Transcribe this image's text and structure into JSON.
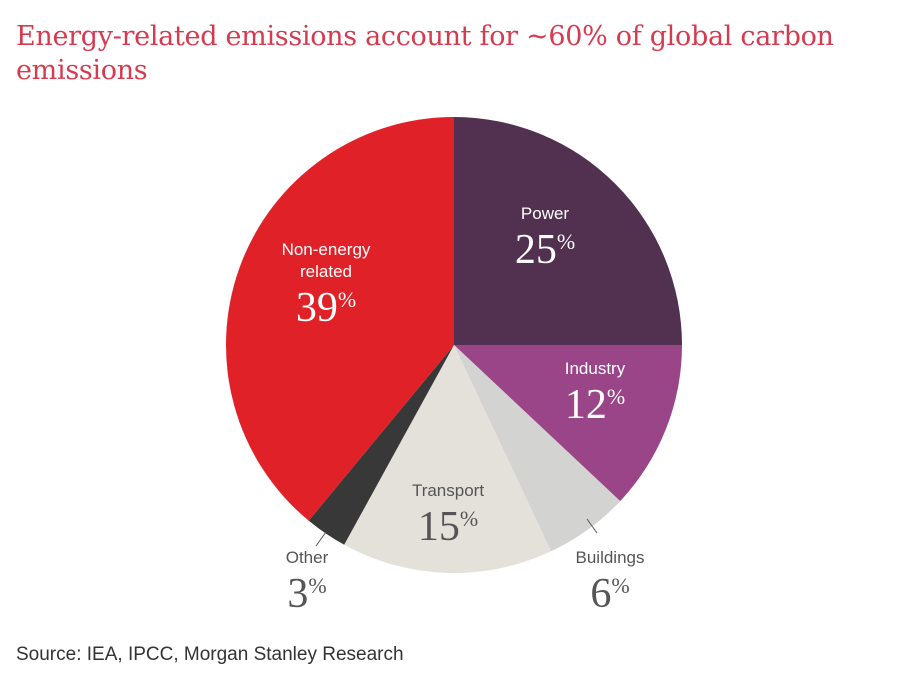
{
  "title": "Energy-related emissions account for ~60% of global carbon emissions",
  "source": "Source: IEA, IPCC, Morgan Stanley Research",
  "chart_data": {
    "type": "pie",
    "title": "Energy-related emissions account for ~60% of global carbon emissions",
    "unit": "%",
    "slices": [
      {
        "label": "Power",
        "value": 25,
        "value_text": "25",
        "color": "#523150",
        "text_color": "#ffffff"
      },
      {
        "label": "Industry",
        "value": 12,
        "value_text": "12",
        "color": "#9b4589",
        "text_color": "#ffffff"
      },
      {
        "label": "Buildings",
        "value": 6,
        "value_text": "6",
        "color": "#d3d3d2",
        "text_color": "#555555"
      },
      {
        "label": "Transport",
        "value": 15,
        "value_text": "15",
        "color": "#e4e1db",
        "text_color": "#555555"
      },
      {
        "label": "Other",
        "value": 3,
        "value_text": "3",
        "color": "#383838",
        "text_color": "#555555"
      },
      {
        "label": "Non-energy related",
        "label_lines": [
          "Non-energy",
          "related"
        ],
        "value": 39,
        "value_text": "39",
        "color": "#e02127",
        "text_color": "#ffffff"
      }
    ]
  }
}
